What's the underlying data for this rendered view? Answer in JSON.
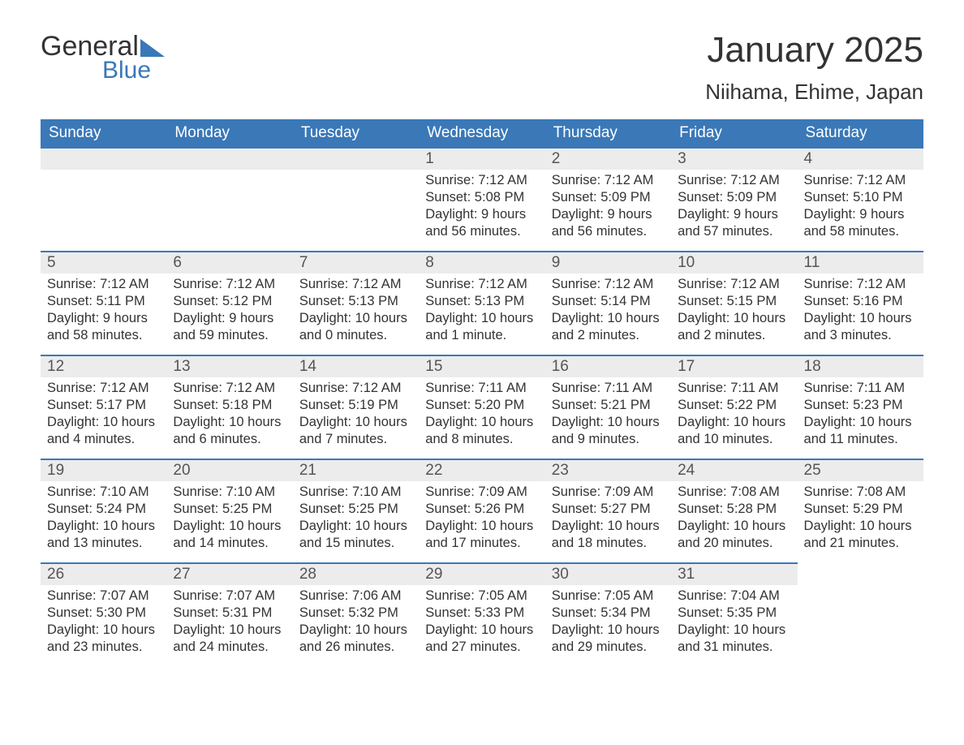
{
  "logo": {
    "text1": "General",
    "text2": "Blue"
  },
  "title": "January 2025",
  "location": "Niihama, Ehime, Japan",
  "colors": {
    "header_bg": "#3a78b8",
    "header_text": "#ffffff",
    "daynum_bg": "#ececec",
    "border_top": "#3a78b8",
    "body_text": "#333333"
  },
  "weekdays": [
    "Sunday",
    "Monday",
    "Tuesday",
    "Wednesday",
    "Thursday",
    "Friday",
    "Saturday"
  ],
  "weeks": [
    [
      null,
      null,
      null,
      {
        "n": "1",
        "sunrise": "7:12 AM",
        "sunset": "5:08 PM",
        "daylight": "9 hours and 56 minutes."
      },
      {
        "n": "2",
        "sunrise": "7:12 AM",
        "sunset": "5:09 PM",
        "daylight": "9 hours and 56 minutes."
      },
      {
        "n": "3",
        "sunrise": "7:12 AM",
        "sunset": "5:09 PM",
        "daylight": "9 hours and 57 minutes."
      },
      {
        "n": "4",
        "sunrise": "7:12 AM",
        "sunset": "5:10 PM",
        "daylight": "9 hours and 58 minutes."
      }
    ],
    [
      {
        "n": "5",
        "sunrise": "7:12 AM",
        "sunset": "5:11 PM",
        "daylight": "9 hours and 58 minutes."
      },
      {
        "n": "6",
        "sunrise": "7:12 AM",
        "sunset": "5:12 PM",
        "daylight": "9 hours and 59 minutes."
      },
      {
        "n": "7",
        "sunrise": "7:12 AM",
        "sunset": "5:13 PM",
        "daylight": "10 hours and 0 minutes."
      },
      {
        "n": "8",
        "sunrise": "7:12 AM",
        "sunset": "5:13 PM",
        "daylight": "10 hours and 1 minute."
      },
      {
        "n": "9",
        "sunrise": "7:12 AM",
        "sunset": "5:14 PM",
        "daylight": "10 hours and 2 minutes."
      },
      {
        "n": "10",
        "sunrise": "7:12 AM",
        "sunset": "5:15 PM",
        "daylight": "10 hours and 2 minutes."
      },
      {
        "n": "11",
        "sunrise": "7:12 AM",
        "sunset": "5:16 PM",
        "daylight": "10 hours and 3 minutes."
      }
    ],
    [
      {
        "n": "12",
        "sunrise": "7:12 AM",
        "sunset": "5:17 PM",
        "daylight": "10 hours and 4 minutes."
      },
      {
        "n": "13",
        "sunrise": "7:12 AM",
        "sunset": "5:18 PM",
        "daylight": "10 hours and 6 minutes."
      },
      {
        "n": "14",
        "sunrise": "7:12 AM",
        "sunset": "5:19 PM",
        "daylight": "10 hours and 7 minutes."
      },
      {
        "n": "15",
        "sunrise": "7:11 AM",
        "sunset": "5:20 PM",
        "daylight": "10 hours and 8 minutes."
      },
      {
        "n": "16",
        "sunrise": "7:11 AM",
        "sunset": "5:21 PM",
        "daylight": "10 hours and 9 minutes."
      },
      {
        "n": "17",
        "sunrise": "7:11 AM",
        "sunset": "5:22 PM",
        "daylight": "10 hours and 10 minutes."
      },
      {
        "n": "18",
        "sunrise": "7:11 AM",
        "sunset": "5:23 PM",
        "daylight": "10 hours and 11 minutes."
      }
    ],
    [
      {
        "n": "19",
        "sunrise": "7:10 AM",
        "sunset": "5:24 PM",
        "daylight": "10 hours and 13 minutes."
      },
      {
        "n": "20",
        "sunrise": "7:10 AM",
        "sunset": "5:25 PM",
        "daylight": "10 hours and 14 minutes."
      },
      {
        "n": "21",
        "sunrise": "7:10 AM",
        "sunset": "5:25 PM",
        "daylight": "10 hours and 15 minutes."
      },
      {
        "n": "22",
        "sunrise": "7:09 AM",
        "sunset": "5:26 PM",
        "daylight": "10 hours and 17 minutes."
      },
      {
        "n": "23",
        "sunrise": "7:09 AM",
        "sunset": "5:27 PM",
        "daylight": "10 hours and 18 minutes."
      },
      {
        "n": "24",
        "sunrise": "7:08 AM",
        "sunset": "5:28 PM",
        "daylight": "10 hours and 20 minutes."
      },
      {
        "n": "25",
        "sunrise": "7:08 AM",
        "sunset": "5:29 PM",
        "daylight": "10 hours and 21 minutes."
      }
    ],
    [
      {
        "n": "26",
        "sunrise": "7:07 AM",
        "sunset": "5:30 PM",
        "daylight": "10 hours and 23 minutes."
      },
      {
        "n": "27",
        "sunrise": "7:07 AM",
        "sunset": "5:31 PM",
        "daylight": "10 hours and 24 minutes."
      },
      {
        "n": "28",
        "sunrise": "7:06 AM",
        "sunset": "5:32 PM",
        "daylight": "10 hours and 26 minutes."
      },
      {
        "n": "29",
        "sunrise": "7:05 AM",
        "sunset": "5:33 PM",
        "daylight": "10 hours and 27 minutes."
      },
      {
        "n": "30",
        "sunrise": "7:05 AM",
        "sunset": "5:34 PM",
        "daylight": "10 hours and 29 minutes."
      },
      {
        "n": "31",
        "sunrise": "7:04 AM",
        "sunset": "5:35 PM",
        "daylight": "10 hours and 31 minutes."
      },
      null
    ]
  ],
  "labels": {
    "sunrise": "Sunrise: ",
    "sunset": "Sunset: ",
    "daylight": "Daylight: "
  }
}
